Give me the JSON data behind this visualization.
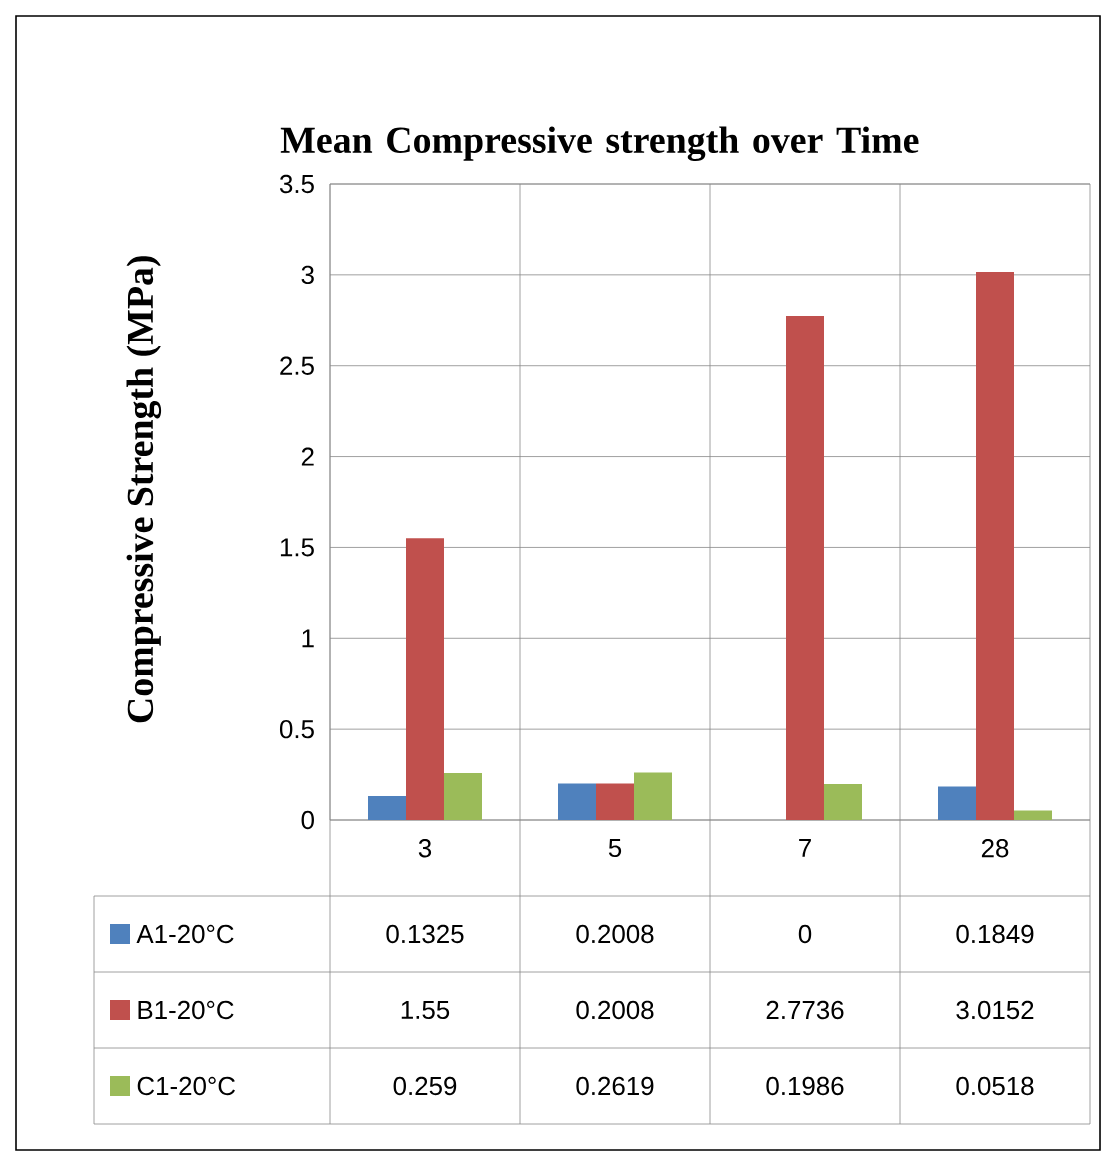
{
  "chart_data": {
    "type": "bar",
    "title": "Mean Compressive strength over Time",
    "ylabel": "Compressive Strength (MPa)",
    "categories": [
      "3",
      "5",
      "7",
      "28"
    ],
    "series": [
      {
        "name": "A1-20°C",
        "color": "#4f81bd",
        "values": [
          0.1325,
          0.2008,
          0,
          0.1849
        ]
      },
      {
        "name": "B1-20°C",
        "color": "#c0504d",
        "values": [
          1.55,
          0.2008,
          2.7736,
          3.0152
        ]
      },
      {
        "name": "C1-20°C",
        "color": "#9bbb59",
        "values": [
          0.259,
          0.2619,
          0.1986,
          0.0518
        ]
      }
    ],
    "ylim": [
      0,
      3.5
    ],
    "yticks": [
      0,
      0.5,
      1,
      1.5,
      2,
      2.5,
      3,
      3.5
    ],
    "grid": true,
    "data_labels": true,
    "legend": "bottom"
  }
}
